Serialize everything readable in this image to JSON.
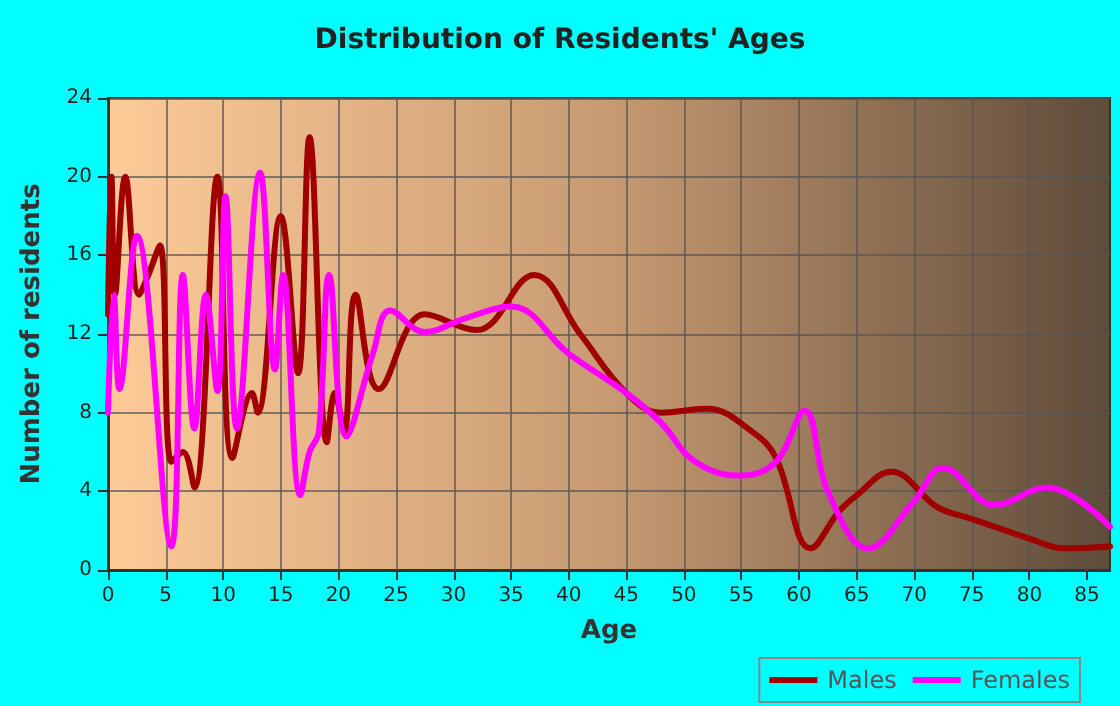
{
  "chart_data": {
    "type": "line",
    "title": "Distribution of Residents' Ages",
    "xlabel": "Age",
    "ylabel": "Number of residents",
    "xlim": [
      0,
      87
    ],
    "xticks": [
      0,
      5,
      10,
      15,
      20,
      25,
      30,
      35,
      40,
      45,
      50,
      55,
      60,
      65,
      70,
      75,
      80,
      85
    ],
    "ylim": [
      0,
      24
    ],
    "yticks": [
      0,
      4,
      8,
      12,
      16,
      20,
      24
    ],
    "grid": true,
    "legend": "bottom",
    "marker": "none",
    "line_style": "solid",
    "series": [
      {
        "name": "Males",
        "color": "#a00000",
        "x": [
          0,
          0.3,
          0.6,
          1.5,
          2.7,
          3.5,
          4.5,
          5.5,
          6.5,
          7.5,
          9.5,
          10.8,
          12.5,
          13,
          15,
          16.5,
          17.5,
          19,
          19.7,
          20.5,
          21.5,
          23.5,
          27.5,
          32,
          37,
          41,
          45,
          48,
          52,
          56,
          58,
          61,
          63.5,
          65,
          68,
          72,
          75,
          80,
          83,
          87
        ],
        "values": [
          13,
          20,
          14,
          20,
          14,
          15,
          16.5,
          5.5,
          6,
          4.2,
          20,
          5.7,
          9,
          8,
          18,
          10,
          22,
          6.5,
          9,
          7,
          14,
          9.2,
          13,
          12.2,
          15,
          12,
          9,
          8,
          8.2,
          7,
          5.7,
          1.1,
          3,
          3.8,
          5,
          3.2,
          2.6,
          1.6,
          1.1,
          1.2
        ]
      },
      {
        "name": "Females",
        "color": "#ff00ff",
        "x": [
          0,
          0.5,
          1,
          2.5,
          5.5,
          6.5,
          7.5,
          8.5,
          9.5,
          10.2,
          11.2,
          13.2,
          14.5,
          15.2,
          16.7,
          17.5,
          18.3,
          19.2,
          20.7,
          23,
          24.5,
          27.5,
          31,
          35,
          40,
          45,
          48,
          51,
          55,
          58,
          60.5,
          62.5,
          66,
          70,
          72.5,
          77,
          81.5,
          87
        ],
        "values": [
          8,
          14,
          9.2,
          17,
          1.2,
          15,
          7.2,
          14,
          9.1,
          19,
          7.2,
          20.2,
          10.2,
          15,
          3.8,
          6,
          7,
          15,
          6.8,
          11,
          13.2,
          12.1,
          12.8,
          13.4,
          11,
          9,
          7.5,
          5.5,
          4.8,
          5.5,
          8.1,
          4,
          1.1,
          3.5,
          5.2,
          3.3,
          4.2,
          2.2
        ]
      }
    ]
  }
}
